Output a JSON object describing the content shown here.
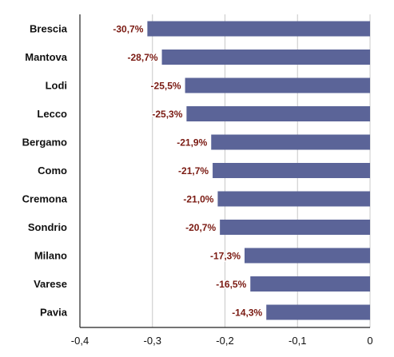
{
  "chart_data": {
    "type": "bar",
    "orientation": "horizontal",
    "categories": [
      "Brescia",
      "Mantova",
      "Lodi",
      "Lecco",
      "Bergamo",
      "Como",
      "Cremona",
      "Sondrio",
      "Milano",
      "Varese",
      "Pavia"
    ],
    "values": [
      -0.307,
      -0.287,
      -0.255,
      -0.253,
      -0.219,
      -0.217,
      -0.21,
      -0.207,
      -0.173,
      -0.165,
      -0.143
    ],
    "data_labels": [
      "-30,7%",
      "-28,7%",
      "-25,5%",
      "-25,3%",
      "-21,9%",
      "-21,7%",
      "-21,0%",
      "-20,7%",
      "-17,3%",
      "-16,5%",
      "-14,3%"
    ],
    "x_ticks": [
      -0.4,
      -0.3,
      -0.2,
      -0.1,
      0
    ],
    "x_tick_labels": [
      "-0,4",
      "-0,3",
      "-0,2",
      "-0,1",
      "0"
    ],
    "xlim": [
      -0.4,
      0
    ],
    "grid": true,
    "colors": {
      "bar": "#5b6498",
      "label": "#7a1a12"
    }
  }
}
